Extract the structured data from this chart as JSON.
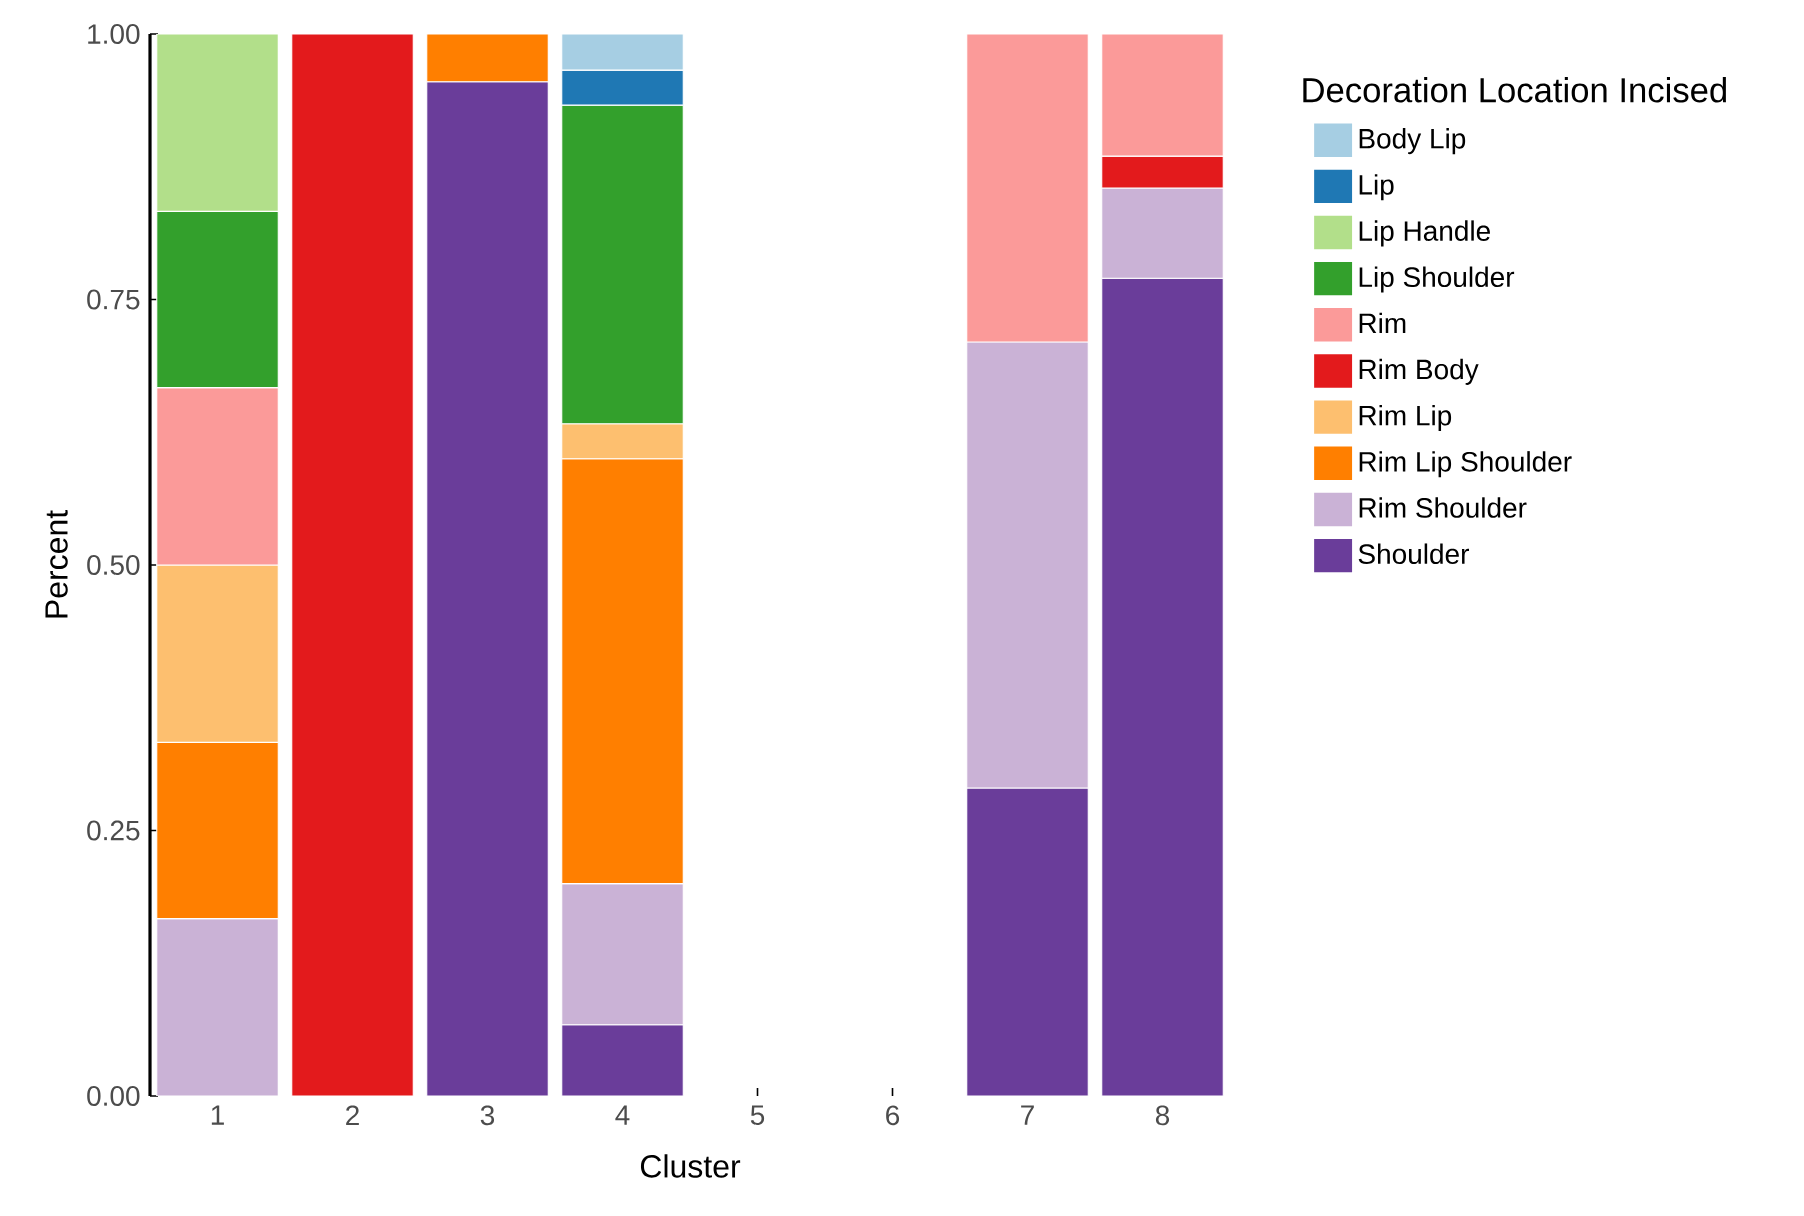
{
  "chart_data": {
    "type": "bar",
    "stacked": true,
    "xlabel": "Cluster",
    "ylabel": "Percent",
    "legend_title": "Decoration Location Incised",
    "legend": "right",
    "categories": [
      "1",
      "2",
      "3",
      "4",
      "5",
      "6",
      "7",
      "8"
    ],
    "ylim": [
      0,
      1
    ],
    "yticks": [
      {
        "value": 0,
        "label": "0.00"
      },
      {
        "value": 0.25,
        "label": "0.25"
      },
      {
        "value": 0.5,
        "label": "0.50"
      },
      {
        "value": 0.75,
        "label": "0.75"
      },
      {
        "value": 1,
        "label": "1.00"
      }
    ],
    "series": [
      {
        "name": "Shoulder",
        "color": "#6a3d9a",
        "values": [
          null,
          null,
          0.955,
          0.067,
          null,
          null,
          0.29,
          0.77
        ]
      },
      {
        "name": "Rim Shoulder",
        "color": "#cab2d6",
        "values": [
          0.167,
          null,
          null,
          0.133,
          null,
          null,
          0.42,
          0.085
        ]
      },
      {
        "name": "Rim Lip Shoulder",
        "color": "#ff7f00",
        "values": [
          0.166,
          null,
          0.045,
          0.4,
          null,
          null,
          null,
          null
        ]
      },
      {
        "name": "Rim Lip",
        "color": "#fdbf6f",
        "values": [
          0.167,
          null,
          null,
          0.033,
          null,
          null,
          null,
          null
        ]
      },
      {
        "name": "Rim Body",
        "color": "#e31a1c",
        "values": [
          null,
          1,
          null,
          null,
          null,
          null,
          null,
          0.03
        ]
      },
      {
        "name": "Rim",
        "color": "#fb9a99",
        "values": [
          0.167,
          null,
          null,
          null,
          null,
          null,
          0.29,
          0.115
        ]
      },
      {
        "name": "Lip Shoulder",
        "color": "#33a02c",
        "values": [
          0.166,
          null,
          null,
          0.3,
          null,
          null,
          null,
          null
        ]
      },
      {
        "name": "Lip Handle",
        "color": "#b2df8a",
        "values": [
          0.167,
          null,
          null,
          null,
          null,
          null,
          null,
          null
        ]
      },
      {
        "name": "Lip",
        "color": "#1f78b4",
        "values": [
          null,
          null,
          null,
          0.033,
          null,
          null,
          null,
          null
        ]
      },
      {
        "name": "Body Lip",
        "color": "#a6cee3",
        "values": [
          null,
          null,
          null,
          0.034,
          null,
          null,
          null,
          null
        ]
      }
    ]
  }
}
